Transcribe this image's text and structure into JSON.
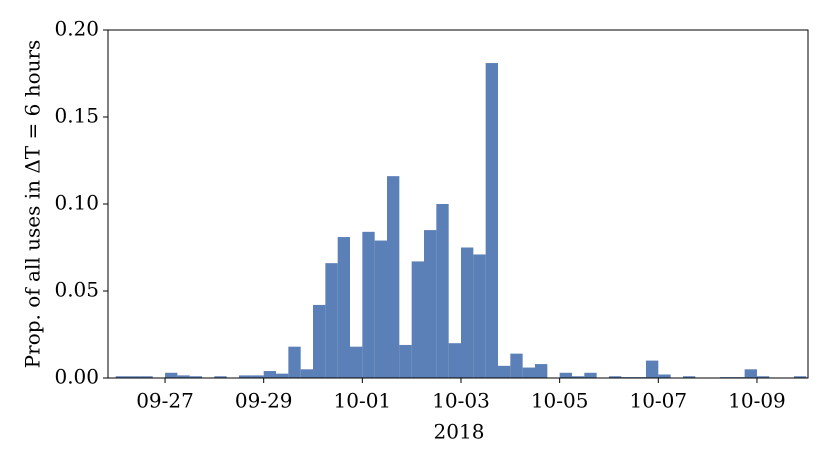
{
  "chart_data": {
    "type": "histogram",
    "xlabel": "2018",
    "ylabel": "Prop. of all uses in ΔT = 6 hours",
    "color": "#5b7fb7",
    "bins": [
      "2018-09-26T00:00",
      "2018-09-26T06:00",
      "2018-09-26T12:00",
      "2018-09-26T18:00",
      "2018-09-27T00:00",
      "2018-09-27T06:00",
      "2018-09-27T12:00",
      "2018-09-27T18:00",
      "2018-09-28T00:00",
      "2018-09-28T06:00",
      "2018-09-28T12:00",
      "2018-09-28T18:00",
      "2018-09-29T00:00",
      "2018-09-29T06:00",
      "2018-09-29T12:00",
      "2018-09-29T18:00",
      "2018-09-30T00:00",
      "2018-09-30T06:00",
      "2018-09-30T12:00",
      "2018-09-30T18:00",
      "2018-10-01T00:00",
      "2018-10-01T06:00",
      "2018-10-01T12:00",
      "2018-10-01T18:00",
      "2018-10-02T00:00",
      "2018-10-02T06:00",
      "2018-10-02T12:00",
      "2018-10-02T18:00",
      "2018-10-03T00:00",
      "2018-10-03T06:00",
      "2018-10-03T12:00",
      "2018-10-03T18:00",
      "2018-10-04T00:00",
      "2018-10-04T06:00",
      "2018-10-04T12:00",
      "2018-10-04T18:00",
      "2018-10-05T00:00",
      "2018-10-05T06:00",
      "2018-10-05T12:00",
      "2018-10-05T18:00",
      "2018-10-06T00:00",
      "2018-10-06T06:00",
      "2018-10-06T12:00",
      "2018-10-06T18:00",
      "2018-10-07T00:00",
      "2018-10-07T06:00",
      "2018-10-07T12:00",
      "2018-10-07T18:00",
      "2018-10-08T00:00",
      "2018-10-08T06:00",
      "2018-10-08T12:00",
      "2018-10-08T18:00",
      "2018-10-09T00:00",
      "2018-10-09T06:00",
      "2018-10-09T12:00",
      "2018-10-09T18:00",
      "2018-10-10T00:00"
    ],
    "values": [
      0.001,
      0.001,
      0.001,
      0,
      0.003,
      0.0015,
      0.001,
      0,
      0.001,
      0,
      0.0015,
      0.0015,
      0.004,
      0.0025,
      0.018,
      0.005,
      0.042,
      0.066,
      0.081,
      0.018,
      0.084,
      0.079,
      0.116,
      0.019,
      0.067,
      0.085,
      0.1,
      0.02,
      0.075,
      0.071,
      0.181,
      0.007,
      0.014,
      0.006,
      0.008,
      0,
      0.003,
      0.001,
      0.003,
      0,
      0.001,
      0.0005,
      0.0005,
      0.01,
      0.002,
      0,
      0.001,
      0,
      0,
      0.0005,
      0.0005,
      0.005,
      0.001,
      0,
      0,
      0.001
    ],
    "xlim": [
      "2018-09-25T20:15",
      "2018-10-10T00:50"
    ],
    "xticks": [
      {
        "value": "2018-09-27T00:00",
        "label": "09-27"
      },
      {
        "value": "2018-09-29T00:00",
        "label": "09-29"
      },
      {
        "value": "2018-10-01T00:00",
        "label": "10-01"
      },
      {
        "value": "2018-10-03T00:00",
        "label": "10-03"
      },
      {
        "value": "2018-10-05T00:00",
        "label": "10-05"
      },
      {
        "value": "2018-10-07T00:00",
        "label": "10-07"
      },
      {
        "value": "2018-10-09T00:00",
        "label": "10-09"
      }
    ],
    "ylim": [
      0,
      0.2
    ],
    "yticks": [
      {
        "value": 0,
        "label": "0.00"
      },
      {
        "value": 0.05,
        "label": "0.05"
      },
      {
        "value": 0.1,
        "label": "0.10"
      },
      {
        "value": 0.15,
        "label": "0.15"
      },
      {
        "value": 0.2,
        "label": "0.20"
      }
    ]
  }
}
